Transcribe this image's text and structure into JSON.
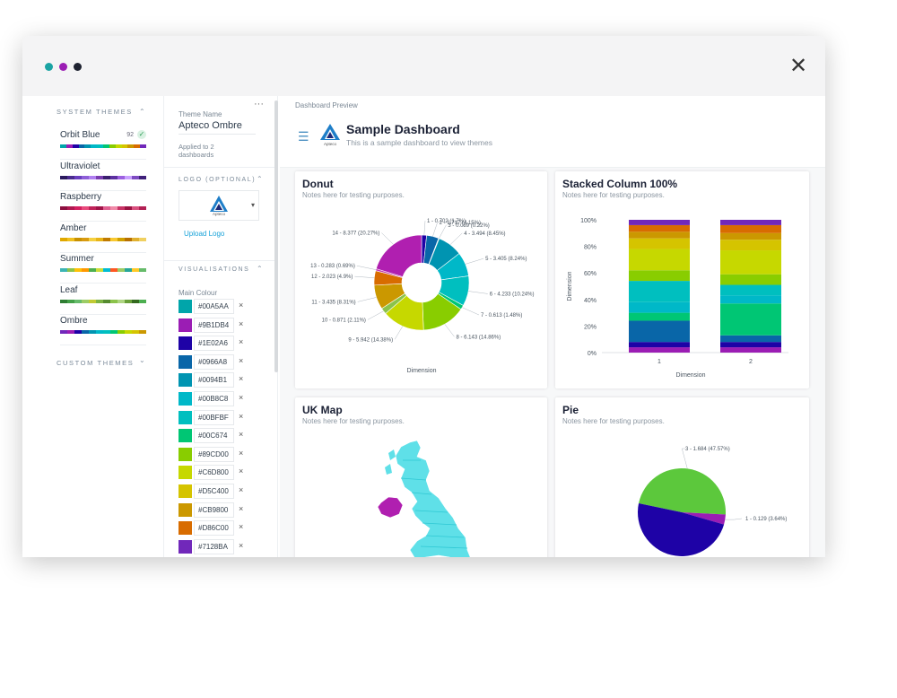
{
  "window": {
    "dots": [
      "#1aa3a3",
      "#9b1db4",
      "#1e2230"
    ],
    "close_icon": "✕"
  },
  "themes_panel": {
    "system_heading": "SYSTEM THEMES",
    "custom_heading": "CUSTOM THEMES",
    "chevron_up": "⌃",
    "chevron_down": "⌄",
    "items": [
      {
        "name": "Orbit Blue",
        "badge": "92",
        "colors": [
          "#00a5aa",
          "#9b1db4",
          "#1e02a6",
          "#0966a8",
          "#0094b1",
          "#00b8c8",
          "#00bfbf",
          "#00c674",
          "#89cd00",
          "#c6d800",
          "#d5c400",
          "#cb9800",
          "#d86c00",
          "#7128ba"
        ]
      },
      {
        "name": "Ultraviolet",
        "colors": [
          "#2b1a5e",
          "#4a2b8f",
          "#6a3fbf",
          "#8e5fd8",
          "#b07ff0",
          "#7a3db0",
          "#3b1f70",
          "#5c30a0",
          "#9c60e0",
          "#c9a0ff",
          "#7e4cc2",
          "#40207a"
        ]
      },
      {
        "name": "Raspberry",
        "colors": [
          "#8c1040",
          "#b01850",
          "#d42060",
          "#e84a7c",
          "#c0245a",
          "#a01448",
          "#e06090",
          "#f08aa8",
          "#c83466",
          "#9a1242",
          "#d8507e",
          "#b22054"
        ]
      },
      {
        "name": "Amber",
        "colors": [
          "#e0a800",
          "#f0c020",
          "#c89000",
          "#d89a10",
          "#f5d040",
          "#e8b418",
          "#c07a00",
          "#f8c830",
          "#d0a000",
          "#b87000",
          "#e0b030",
          "#f0d060"
        ]
      },
      {
        "name": "Summer",
        "colors": [
          "#3cb4b4",
          "#8bc34a",
          "#ffc107",
          "#ff9800",
          "#4caf50",
          "#cddc39",
          "#00bcd4",
          "#ff5722",
          "#9ccc65",
          "#26a69a",
          "#ffca28",
          "#66bb6a"
        ]
      },
      {
        "name": "Leaf",
        "colors": [
          "#2e7d32",
          "#43a047",
          "#66bb6a",
          "#9ccc65",
          "#c0ca33",
          "#7cb342",
          "#558b2f",
          "#8bc34a",
          "#aed581",
          "#689f38",
          "#33691e",
          "#4caf50"
        ]
      },
      {
        "name": "Ombre",
        "colors": [
          "#7128ba",
          "#9b1db4",
          "#1e02a6",
          "#0966a8",
          "#0094b1",
          "#00b8c8",
          "#00bfbf",
          "#00c674",
          "#89cd00",
          "#c6d800",
          "#d5c400",
          "#cb9800"
        ]
      }
    ]
  },
  "editor": {
    "theme_name_label": "Theme Name",
    "theme_name_value": "Apteco Ombre",
    "more_icon": "···",
    "applied_line1": "Applied to 2",
    "applied_line2": "dashboards",
    "logo_heading": "LOGO (OPTIONAL)",
    "logo_caption": "Apteco",
    "dropdown_icon": "▾",
    "upload_logo": "Upload Logo",
    "visualisations_heading": "VISUALISATIONS",
    "main_colour_label": "Main Colour",
    "remove_icon": "×",
    "colours": [
      {
        "hex": "#00A5AA"
      },
      {
        "hex": "#9B1DB4"
      },
      {
        "hex": "#1E02A6"
      },
      {
        "hex": "#0966A8"
      },
      {
        "hex": "#0094B1"
      },
      {
        "hex": "#00B8C8"
      },
      {
        "hex": "#00BFBF"
      },
      {
        "hex": "#00C674"
      },
      {
        "hex": "#89CD00"
      },
      {
        "hex": "#C6D800"
      },
      {
        "hex": "#D5C400"
      },
      {
        "hex": "#CB9800"
      },
      {
        "hex": "#D86C00"
      },
      {
        "hex": "#7128BA"
      }
    ]
  },
  "preview": {
    "label": "Dashboard Preview",
    "menu_icon": "☰",
    "logo_caption": "Apteco",
    "title": "Sample Dashboard",
    "subtitle": "This is a sample dashboard to view themes"
  },
  "cards": {
    "donut": {
      "title": "Donut",
      "notes": "Notes here for testing purposes."
    },
    "stacked": {
      "title": "Stacked Column 100%",
      "notes": "Notes here for testing purposes."
    },
    "map": {
      "title": "UK Map",
      "notes": "Notes here for testing purposes."
    },
    "pie": {
      "title": "Pie",
      "notes": "Notes here for testing purposes."
    }
  },
  "chart_data": [
    {
      "type": "pie",
      "variant": "donut",
      "xlabel": "Dimension",
      "slices": [
        {
          "label": "1 - 0.702 (1.7%)",
          "value": 1.7,
          "color": "#1e02a6"
        },
        {
          "label": "2 - 1.717 (4.15%)",
          "value": 4.15,
          "color": "#0966a8"
        },
        {
          "label": "3 - 0.089 (0.22%)",
          "value": 0.22,
          "color": "#0a6fa8"
        },
        {
          "label": "4 - 3.494 (8.45%)",
          "value": 8.45,
          "color": "#0094b1"
        },
        {
          "label": "5 - 3.405 (8.24%)",
          "value": 8.24,
          "color": "#00b8c8"
        },
        {
          "label": "6 - 4.233 (10.24%)",
          "value": 10.24,
          "color": "#00bfbf"
        },
        {
          "label": "7 - 0.613 (1.48%)",
          "value": 1.48,
          "color": "#00c674"
        },
        {
          "label": "8 - 6.143 (14.86%)",
          "value": 14.86,
          "color": "#89cd00"
        },
        {
          "label": "9 - 5.942 (14.38%)",
          "value": 14.38,
          "color": "#c6d800"
        },
        {
          "label": "10 - 0.871 (2.11%)",
          "value": 2.11,
          "color": "#8bc34a"
        },
        {
          "label": "11 - 3.435 (8.31%)",
          "value": 8.31,
          "color": "#cb9800"
        },
        {
          "label": "12 - 2.023 (4.9%)",
          "value": 4.9,
          "color": "#d86c00"
        },
        {
          "label": "13 - 0.283 (0.69%)",
          "value": 0.69,
          "color": "#c23ab0"
        },
        {
          "label": "14 - 8.377 (20.27%)",
          "value": 20.27,
          "color": "#b01fb0"
        }
      ]
    },
    {
      "type": "bar",
      "variant": "stacked-100",
      "categories": [
        "1",
        "2"
      ],
      "xlabel": "Dimension",
      "ylabel": "Dimension",
      "ylim": [
        0,
        100
      ],
      "yticks": [
        "0%",
        "20%",
        "40%",
        "60%",
        "80%",
        "100%"
      ],
      "series": [
        {
          "values": [
            4,
            4
          ],
          "color": "#9b1db4"
        },
        {
          "values": [
            4,
            4
          ],
          "color": "#1e02a6"
        },
        {
          "values": [
            16,
            5
          ],
          "color": "#0966a8"
        },
        {
          "values": [
            6,
            24
          ],
          "color": "#00c674"
        },
        {
          "values": [
            8,
            6
          ],
          "color": "#00b8c8"
        },
        {
          "values": [
            16,
            8
          ],
          "color": "#00bfbf"
        },
        {
          "values": [
            8,
            8
          ],
          "color": "#89cd00"
        },
        {
          "values": [
            16,
            18
          ],
          "color": "#c6d800"
        },
        {
          "values": [
            8,
            8
          ],
          "color": "#d5c400"
        },
        {
          "values": [
            5,
            5
          ],
          "color": "#cb9800"
        },
        {
          "values": [
            5,
            6
          ],
          "color": "#d86c00"
        },
        {
          "values": [
            4,
            4
          ],
          "color": "#7128ba"
        }
      ]
    },
    {
      "type": "pie",
      "slices": [
        {
          "label": "3 - 1.684 (47.57%)",
          "value": 47.57,
          "color": "#5cc83c"
        },
        {
          "label": "1 - 0.129 (3.64%)",
          "value": 3.64,
          "color": "#9b1db4"
        },
        {
          "label": "",
          "value": 48.79,
          "color": "#1e02a6"
        }
      ]
    }
  ]
}
